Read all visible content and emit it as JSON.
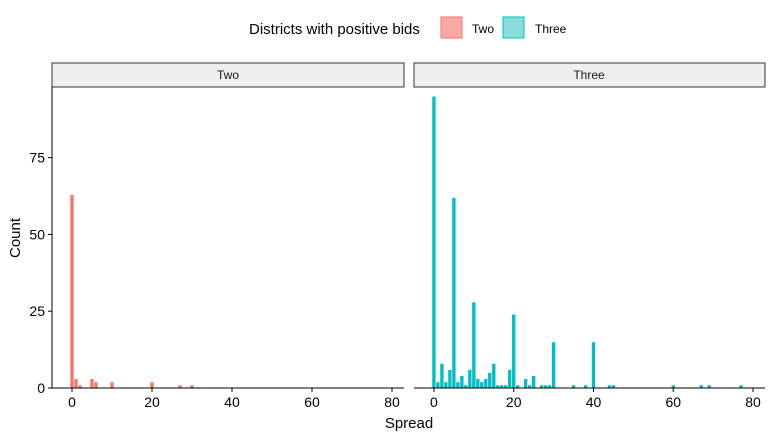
{
  "chart_data": {
    "type": "bar",
    "xlabel": "Spread",
    "ylabel": "Count",
    "xlim": [
      -5,
      83
    ],
    "ylim": [
      0,
      98
    ],
    "x_ticks": [
      0,
      20,
      40,
      60,
      80
    ],
    "y_ticks": [
      0,
      25,
      50,
      75
    ],
    "bin_width": 1,
    "legend": {
      "title": "Districts with positive bids",
      "placement": "top",
      "entries": [
        {
          "label": "Two",
          "fill": "#F8A9A3",
          "stroke": "#F8766D"
        },
        {
          "label": "Three",
          "fill": "#8ADDDB",
          "stroke": "#00BFC4"
        }
      ]
    },
    "panels": [
      {
        "strip_label": "Two",
        "fill": "#F8766D",
        "x": [
          0,
          1,
          2,
          5,
          6,
          10,
          20,
          27,
          30
        ],
        "values": [
          63,
          3,
          1,
          3,
          2,
          2,
          2,
          1,
          1
        ]
      },
      {
        "strip_label": "Three",
        "fill": "#00BFC4",
        "x": [
          0,
          1,
          2,
          3,
          4,
          5,
          6,
          7,
          8,
          9,
          10,
          11,
          12,
          13,
          14,
          15,
          16,
          17,
          18,
          19,
          20,
          21,
          23,
          24,
          25,
          27,
          28,
          29,
          30,
          35,
          38,
          40,
          44,
          45,
          60,
          67,
          69,
          77
        ],
        "values": [
          95,
          2,
          8,
          2,
          6,
          62,
          2,
          4,
          1,
          6,
          28,
          3,
          2,
          3,
          5,
          8,
          1,
          1,
          1,
          6,
          24,
          1,
          3,
          1,
          4,
          1,
          1,
          1,
          15,
          1,
          1,
          15,
          1,
          1,
          1,
          1,
          1,
          1
        ]
      }
    ]
  }
}
